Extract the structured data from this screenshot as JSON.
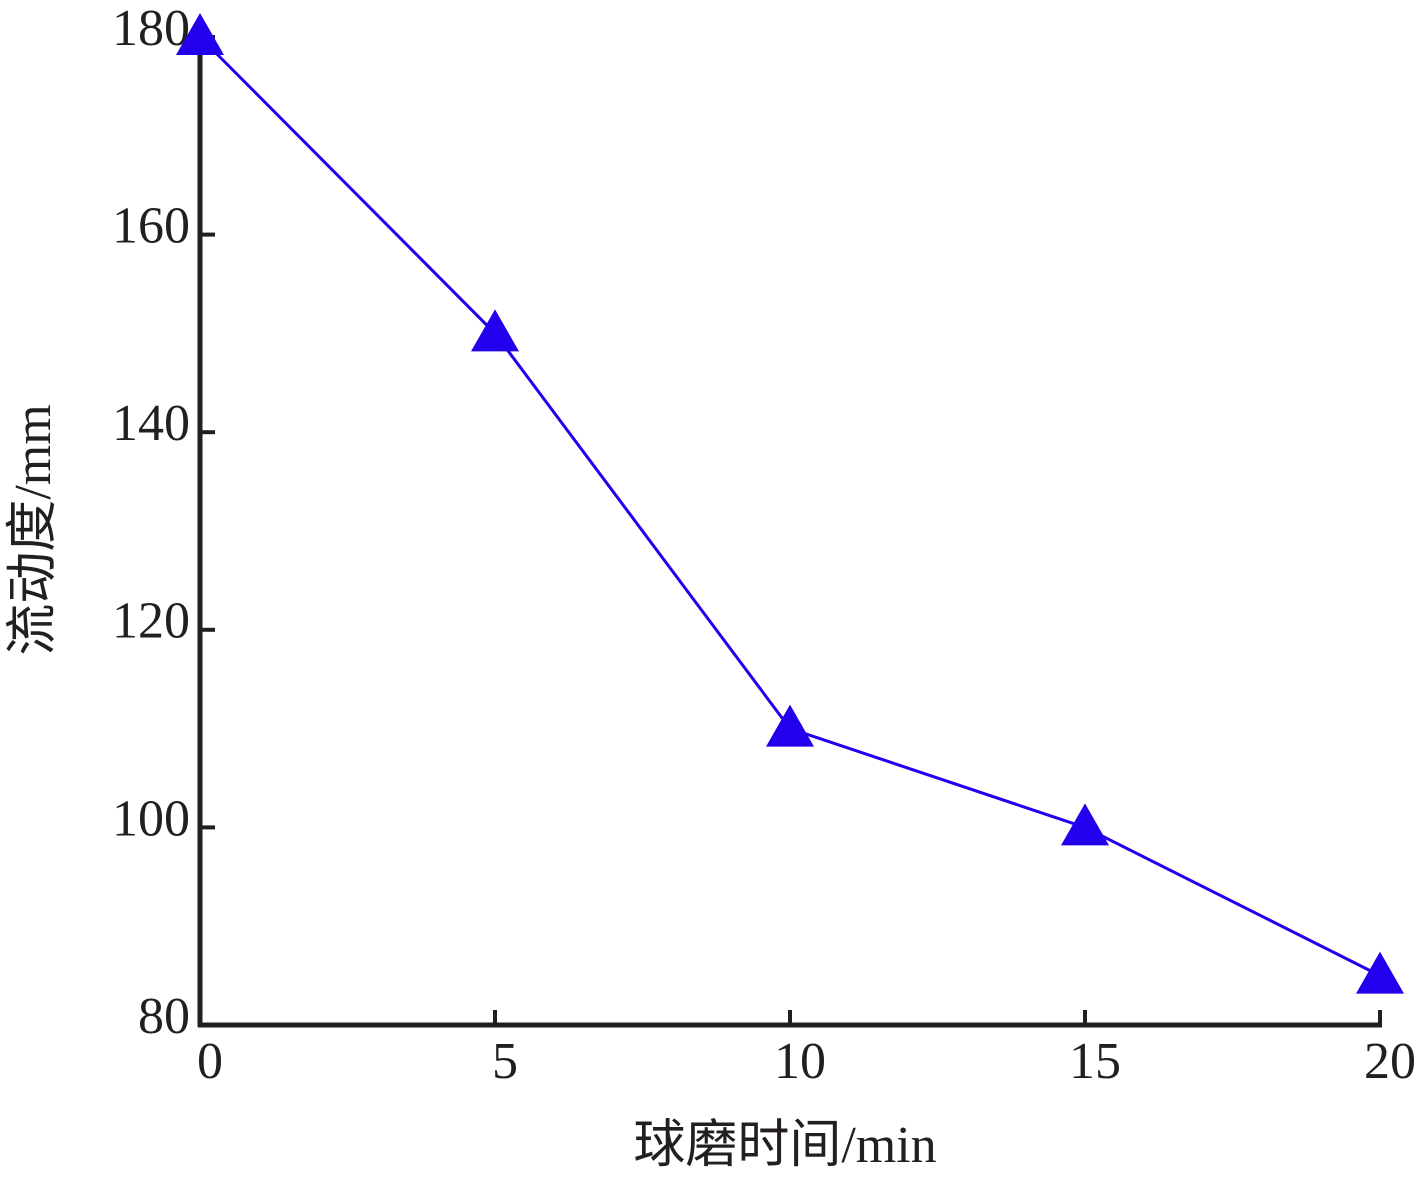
{
  "chart_data": {
    "type": "line",
    "x_label": "球磨时间/min",
    "y_label": "流动度/mm",
    "x": [
      0,
      5,
      10,
      15,
      20
    ],
    "series": [
      {
        "name": "流动度",
        "color": "#2200ee",
        "values": [
          180,
          150,
          110,
          100,
          85
        ]
      }
    ],
    "xlim": [
      0,
      20
    ],
    "xticks": [
      0,
      5,
      10,
      15,
      20
    ],
    "ylim": [
      80,
      180
    ],
    "yticks": [
      80,
      100,
      120,
      140,
      160,
      180
    ],
    "grid": false,
    "marker": "triangle"
  }
}
